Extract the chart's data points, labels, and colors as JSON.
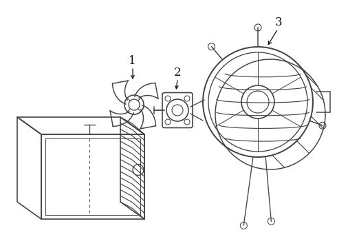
{
  "bg_color": "#ffffff",
  "line_color": "#444444",
  "label_color": "#111111",
  "lw": 1.2,
  "fig_w": 4.9,
  "fig_h": 3.6,
  "dpi": 100,
  "label_1": "1",
  "label_2": "2",
  "label_3": "3"
}
